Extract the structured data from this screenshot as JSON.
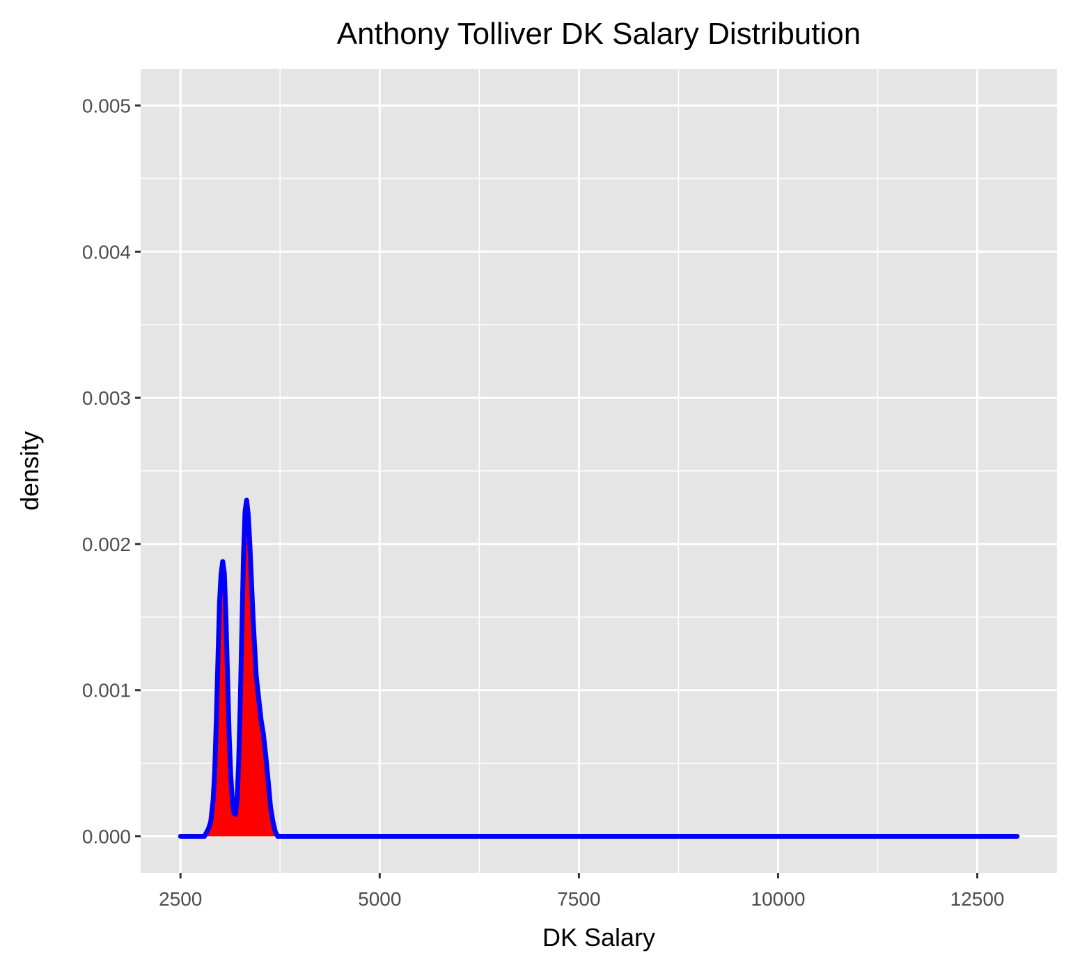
{
  "chart_data": {
    "type": "area",
    "title": "Anthony Tolliver DK Salary Distribution",
    "xlabel": "DK Salary",
    "ylabel": "density",
    "xlim": [
      2000,
      13500
    ],
    "ylim": [
      -0.00025,
      0.00525
    ],
    "x_ticks": [
      2500,
      5000,
      7500,
      10000,
      12500
    ],
    "x_tick_labels": [
      "2500",
      "5000",
      "7500",
      "10000",
      "12500"
    ],
    "y_ticks": [
      0,
      0.001,
      0.002,
      0.003,
      0.004,
      0.005
    ],
    "y_tick_labels": [
      "0.000",
      "0.001",
      "0.002",
      "0.003",
      "0.004",
      "0.005"
    ],
    "grid": true,
    "legend": "none",
    "fill_color": "#ff0000",
    "line_color": "#0000ff",
    "panel_color": "#e5e5e5",
    "series": [
      {
        "x": [
          2500,
          2800,
          2850,
          2880,
          2910,
          2930,
          2950,
          2970,
          2990,
          3010,
          3030,
          3050,
          3070,
          3090,
          3110,
          3130,
          3150,
          3170,
          3190,
          3210,
          3230,
          3250,
          3270,
          3290,
          3310,
          3330,
          3350,
          3370,
          3390,
          3410,
          3430,
          3450,
          3470,
          3490,
          3510,
          3540,
          3570,
          3600,
          3630,
          3660,
          3690,
          3720,
          3740,
          3760,
          3780,
          3800,
          3830,
          3870,
          3920,
          13000
        ],
        "y": [
          0,
          0,
          5e-05,
          0.0001,
          0.00025,
          0.00045,
          0.0008,
          0.0012,
          0.0016,
          0.0018,
          0.00188,
          0.0018,
          0.0015,
          0.0011,
          0.0007,
          0.00042,
          0.00025,
          0.00016,
          0.00015,
          0.00025,
          0.0005,
          0.0009,
          0.0014,
          0.0019,
          0.00222,
          0.0023,
          0.0022,
          0.002,
          0.00175,
          0.0015,
          0.0013,
          0.0011,
          0.001,
          0.0009,
          0.0008,
          0.0007,
          0.00055,
          0.00038,
          0.0002,
          0.0001,
          3e-05,
          0,
          0,
          0,
          0,
          0,
          0,
          0,
          0,
          0
        ]
      }
    ]
  }
}
